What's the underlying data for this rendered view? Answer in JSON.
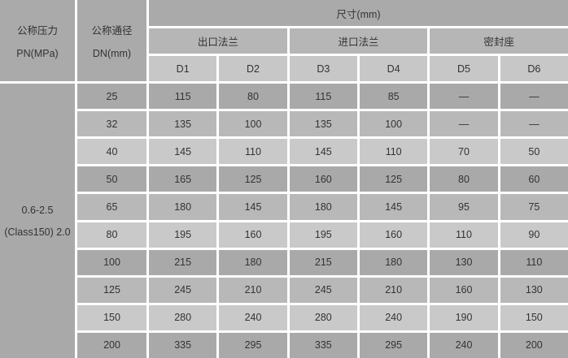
{
  "table": {
    "header": {
      "pressure_col": {
        "line1": "公称压力",
        "line2": "PN(MPa)"
      },
      "diameter_col": {
        "line1": "公称通径",
        "line2": "DN(mm)"
      },
      "size_group": "尺寸(mm)",
      "groups": [
        {
          "label": "出口法兰",
          "cols": [
            "D1",
            "D2"
          ]
        },
        {
          "label": "进口法兰",
          "cols": [
            "D3",
            "D4"
          ]
        },
        {
          "label": "密封座",
          "cols": [
            "D5",
            "D6"
          ]
        }
      ]
    },
    "pressure": {
      "line1": "0.6-2.5",
      "line2": "(Class150) 2.0"
    },
    "rows": [
      {
        "dn": "25",
        "values": [
          "115",
          "80",
          "115",
          "85",
          "—",
          "—"
        ]
      },
      {
        "dn": "32",
        "values": [
          "135",
          "100",
          "135",
          "100",
          "—",
          "—"
        ]
      },
      {
        "dn": "40",
        "values": [
          "145",
          "110",
          "145",
          "110",
          "70",
          "50"
        ]
      },
      {
        "dn": "50",
        "values": [
          "165",
          "125",
          "160",
          "125",
          "80",
          "60"
        ]
      },
      {
        "dn": "65",
        "values": [
          "180",
          "145",
          "180",
          "145",
          "95",
          "75"
        ]
      },
      {
        "dn": "80",
        "values": [
          "195",
          "160",
          "195",
          "160",
          "110",
          "90"
        ]
      },
      {
        "dn": "100",
        "values": [
          "215",
          "180",
          "215",
          "180",
          "130",
          "110"
        ]
      },
      {
        "dn": "125",
        "values": [
          "245",
          "210",
          "245",
          "210",
          "160",
          "130"
        ]
      },
      {
        "dn": "150",
        "values": [
          "280",
          "240",
          "280",
          "240",
          "190",
          "150"
        ]
      },
      {
        "dn": "200",
        "values": [
          "335",
          "295",
          "335",
          "295",
          "240",
          "200"
        ]
      }
    ],
    "colors": {
      "border": "#ffffff",
      "text": "#333333",
      "header_dark": "#aaaaaa",
      "header_mid": "#b6b6b6",
      "header_light": "#c7c7c7",
      "row_cycle": [
        "#a9a9a9",
        "#b8b8b8",
        "#c9c9c9"
      ]
    }
  }
}
